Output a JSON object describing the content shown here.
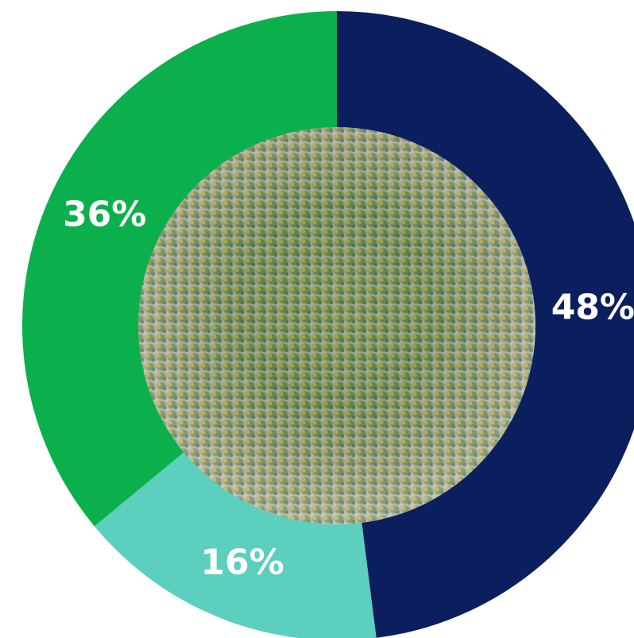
{
  "chart_data": {
    "type": "pie",
    "values": [
      48,
      16,
      36
    ],
    "value_labels": [
      "48%",
      "16%",
      "36%"
    ],
    "colors": [
      "#0b1f5e",
      "#5ccfbe",
      "#0bb04c"
    ]
  }
}
